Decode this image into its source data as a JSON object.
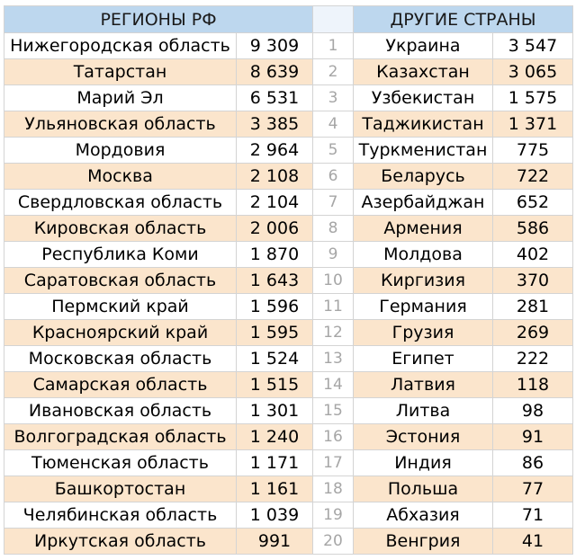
{
  "header": {
    "regions_title": "РЕГИОНЫ РФ",
    "countries_title": "ДРУГИЕ СТРАНЫ"
  },
  "rows": [
    {
      "region": "Нижегородская область",
      "region_value": "9 309",
      "rank": "1",
      "country": "Украина",
      "country_value": "3 547"
    },
    {
      "region": "Татарстан",
      "region_value": "8 639",
      "rank": "2",
      "country": "Казахстан",
      "country_value": "3 065"
    },
    {
      "region": "Марий Эл",
      "region_value": "6 531",
      "rank": "3",
      "country": "Узбекистан",
      "country_value": "1 575"
    },
    {
      "region": "Ульяновская область",
      "region_value": "3 385",
      "rank": "4",
      "country": "Таджикистан",
      "country_value": "1 371"
    },
    {
      "region": "Мордовия",
      "region_value": "2 964",
      "rank": "5",
      "country": "Туркменистан",
      "country_value": "775"
    },
    {
      "region": "Москва",
      "region_value": "2 108",
      "rank": "6",
      "country": "Беларусь",
      "country_value": "722"
    },
    {
      "region": "Свердловская область",
      "region_value": "2 104",
      "rank": "7",
      "country": "Азербайджан",
      "country_value": "652"
    },
    {
      "region": "Кировская область",
      "region_value": "2 006",
      "rank": "8",
      "country": "Армения",
      "country_value": "586"
    },
    {
      "region": "Республика Коми",
      "region_value": "1 870",
      "rank": "9",
      "country": "Молдова",
      "country_value": "402"
    },
    {
      "region": "Саратовская область",
      "region_value": "1 643",
      "rank": "10",
      "country": "Киргизия",
      "country_value": "370"
    },
    {
      "region": "Пермский край",
      "region_value": "1 596",
      "rank": "11",
      "country": "Германия",
      "country_value": "281"
    },
    {
      "region": "Красноярский край",
      "region_value": "1 595",
      "rank": "12",
      "country": "Грузия",
      "country_value": "269"
    },
    {
      "region": "Московская область",
      "region_value": "1 524",
      "rank": "13",
      "country": "Египет",
      "country_value": "222"
    },
    {
      "region": "Самарская область",
      "region_value": "1 515",
      "rank": "14",
      "country": "Латвия",
      "country_value": "118"
    },
    {
      "region": "Ивановская область",
      "region_value": "1 301",
      "rank": "15",
      "country": "Литва",
      "country_value": "98"
    },
    {
      "region": "Волгоградская область",
      "region_value": "1 240",
      "rank": "16",
      "country": "Эстония",
      "country_value": "91"
    },
    {
      "region": "Тюменская область",
      "region_value": "1 171",
      "rank": "17",
      "country": "Индия",
      "country_value": "86"
    },
    {
      "region": "Башкортостан",
      "region_value": "1 161",
      "rank": "18",
      "country": "Польша",
      "country_value": "77"
    },
    {
      "region": "Челябинская область",
      "region_value": "1 039",
      "rank": "19",
      "country": "Абхазия",
      "country_value": "71"
    },
    {
      "region": "Иркутская область",
      "region_value": "991",
      "rank": "20",
      "country": "Венгрия",
      "country_value": "41"
    }
  ],
  "colors": {
    "header_bg": "#bdd7ee",
    "stripe_bg": "#fbe5cc",
    "rank_text": "#a6a6a6",
    "grid": "#d4d4d4"
  }
}
